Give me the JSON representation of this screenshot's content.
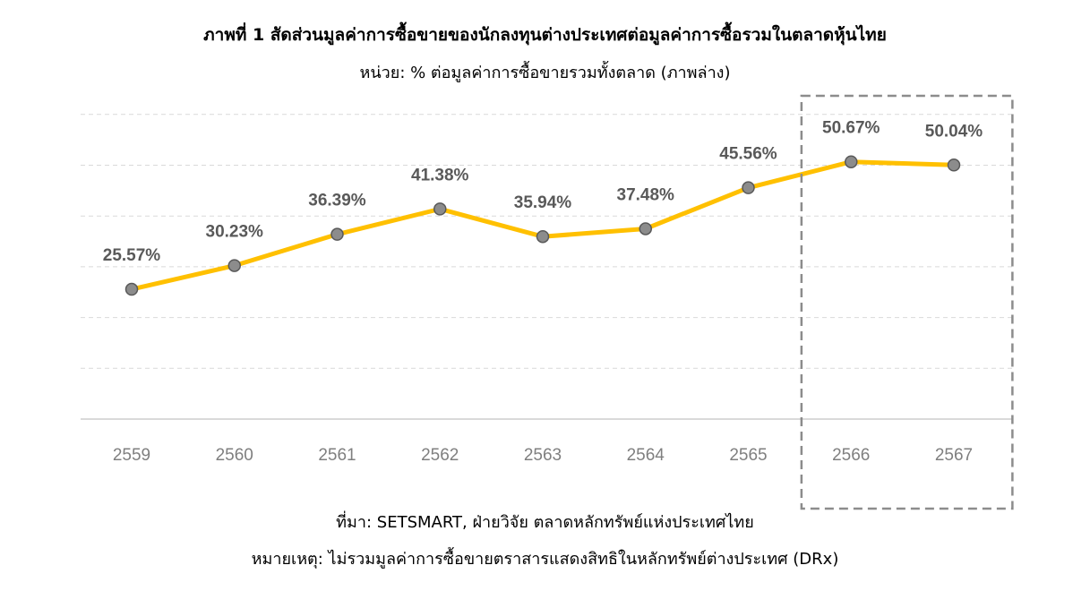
{
  "chart_data": {
    "type": "line",
    "title": "ภาพที่ 1 สัดส่วนมูลค่าการซื้อขายของนักลงทุนต่างประเทศต่อมูลค่าการซื้อรวมในตลาดหุ้นไทย",
    "subtitle": "หน่วย: % ต่อมูลค่าการซื้อขายรวมทั้งตลาด (ภาพล่าง)",
    "categories": [
      "2559",
      "2560",
      "2561",
      "2562",
      "2563",
      "2564",
      "2565",
      "2566",
      "2567"
    ],
    "series": [
      {
        "values": [
          25.57,
          30.23,
          36.39,
          41.38,
          35.94,
          37.48,
          45.56,
          50.67,
          50.04
        ],
        "labels": [
          "25.57%",
          "30.23%",
          "36.39%",
          "41.38%",
          "35.94%",
          "37.48%",
          "45.56%",
          "50.67%",
          "50.04%"
        ],
        "color": "#FFC000",
        "marker_color": "#8C8C8C"
      }
    ],
    "ylim": [
      0,
      60
    ],
    "grid": true,
    "highlight_categories": [
      "2566",
      "2567"
    ],
    "source": "ที่มา: SETSMART, ฝ่ายวิจัย ตลาดหลักทรัพย์แห่งประเทศไทย",
    "note": "หมายเหตุ: ไม่รวมมูลค่าการซื้อขายตราสารแสดงสิทธิในหลักทรัพย์ต่างประเทศ (DRx)"
  }
}
